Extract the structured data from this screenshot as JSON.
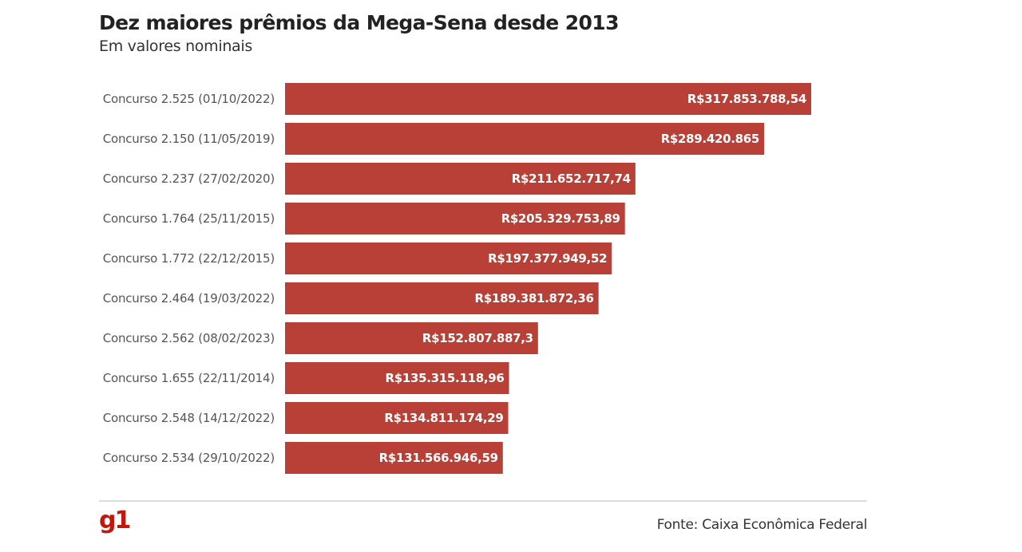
{
  "header": {
    "title": "Dez maiores prêmios da Mega-Sena desde 2013",
    "subtitle": "Em valores nominais"
  },
  "footer": {
    "logo": "g1",
    "source": "Fonte: Caixa Econômica Federal"
  },
  "colors": {
    "bar": "#b94037",
    "logo": "#c4170c"
  },
  "chart_data": {
    "type": "bar",
    "orientation": "horizontal",
    "title": "Dez maiores prêmios da Mega-Sena desde 2013",
    "subtitle": "Em valores nominais",
    "xlabel": "",
    "ylabel": "",
    "grid": false,
    "legend": "none",
    "categories": [
      "Concurso 2.525 (01/10/2022)",
      "Concurso 2.150 (11/05/2019)",
      "Concurso 2.237 (27/02/2020)",
      "Concurso 1.764 (25/11/2015)",
      "Concurso 1.772 (22/12/2015)",
      "Concurso 2.464 (19/03/2022)",
      "Concurso 2.562 (08/02/2023)",
      "Concurso 1.655 (22/11/2014)",
      "Concurso 2.548 (14/12/2022)",
      "Concurso 2.534 (29/10/2022)"
    ],
    "values": [
      317853788.54,
      289420865,
      211652717.74,
      205329753.89,
      197377949.52,
      189381872.36,
      152807887.3,
      135315118.96,
      134811174.29,
      131566946.59
    ],
    "value_labels": [
      "R$317.853.788,54",
      "R$289.420.865",
      "R$211.652.717,74",
      "R$205.329.753,89",
      "R$197.377.949,52",
      "R$189.381.872,36",
      "R$152.807.887,3",
      "R$135.315.118,96",
      "R$134.811.174,29",
      "R$131.566.946,59"
    ],
    "xlim": [
      0,
      317853788.54
    ]
  }
}
